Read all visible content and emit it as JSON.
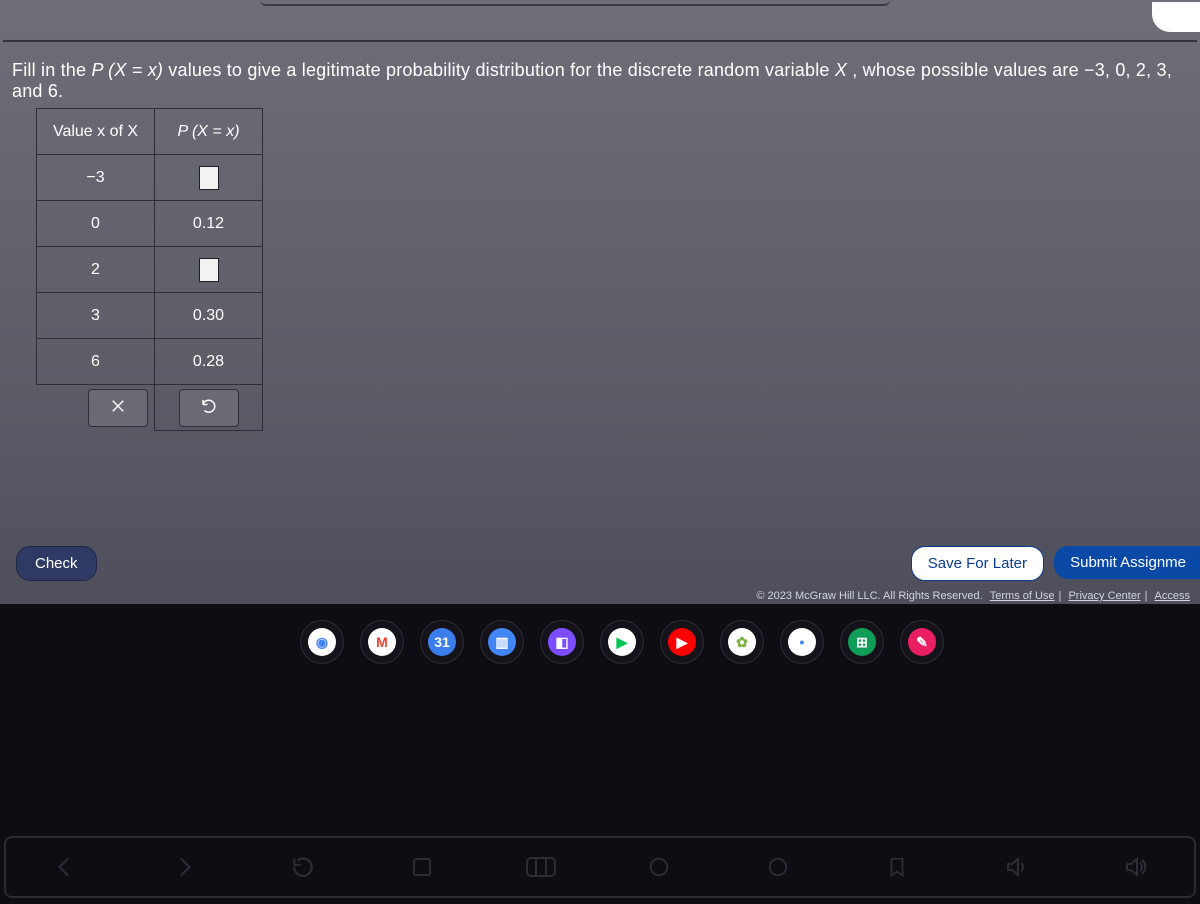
{
  "prompt": {
    "pre": "Fill in the ",
    "expr": "P (X = x)",
    "mid": " values to give a legitimate probability distribution for the discrete random variable ",
    "var": "X",
    "post": ", whose possible values are −3, 0, 2, 3, and 6."
  },
  "table": {
    "header_value": "Value x of X",
    "header_prob": "P (X = x)",
    "rows": [
      {
        "x": "−3",
        "p": "",
        "blank": true
      },
      {
        "x": "0",
        "p": "0.12",
        "blank": false
      },
      {
        "x": "2",
        "p": "",
        "blank": true
      },
      {
        "x": "3",
        "p": "0.30",
        "blank": false
      },
      {
        "x": "6",
        "p": "0.28",
        "blank": false
      }
    ]
  },
  "buttons": {
    "check": "Check",
    "save": "Save For Later",
    "submit": "Submit Assignme"
  },
  "legal": {
    "copyright": "© 2023 McGraw Hill LLC. All Rights Reserved.",
    "links": [
      "Terms of Use",
      "Privacy Center",
      "Access"
    ]
  },
  "dock": [
    {
      "name": "chrome-icon",
      "bg": "#ffffff",
      "fg": "#4285f4",
      "glyph": "◉"
    },
    {
      "name": "gmail-icon",
      "bg": "#ffffff",
      "fg": "#ea4335",
      "glyph": "M"
    },
    {
      "name": "calendar-icon",
      "bg": "#3b7ded",
      "fg": "#ffffff",
      "glyph": "31"
    },
    {
      "name": "files-icon",
      "bg": "#4285f4",
      "fg": "#ffffff",
      "glyph": "▥"
    },
    {
      "name": "camera-icon",
      "bg": "#7c4dff",
      "fg": "#ffffff",
      "glyph": "◧"
    },
    {
      "name": "play-icon",
      "bg": "#ffffff",
      "fg": "#00c853",
      "glyph": "▶"
    },
    {
      "name": "youtube-icon",
      "bg": "#ff0000",
      "fg": "#ffffff",
      "glyph": "▶"
    },
    {
      "name": "snapseed-icon",
      "bg": "#ffffff",
      "fg": "#7cb342",
      "glyph": "✿"
    },
    {
      "name": "assistant-icon",
      "bg": "#ffffff",
      "fg": "#4285f4",
      "glyph": "•"
    },
    {
      "name": "calculator-icon",
      "bg": "#0f9d58",
      "fg": "#ffffff",
      "glyph": "⊞"
    },
    {
      "name": "notes-icon",
      "bg": "#e91e63",
      "fg": "#ffffff",
      "glyph": "✎"
    }
  ]
}
